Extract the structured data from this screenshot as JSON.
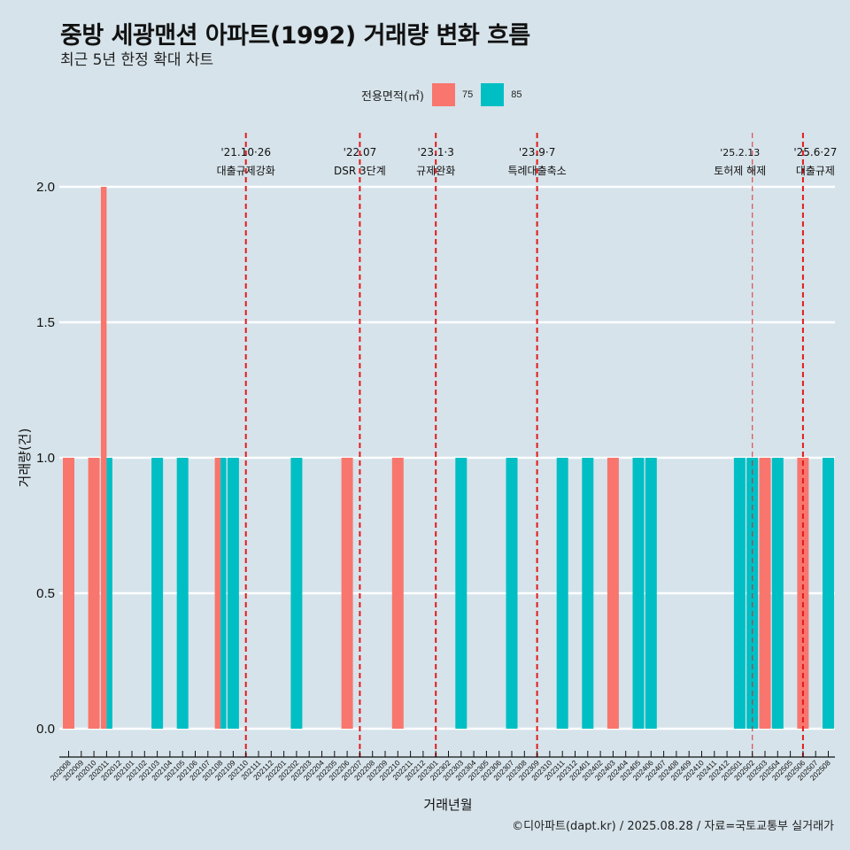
{
  "header": {
    "title": "중방 세광맨션 아파트(1992) 거래량 변화 흐름",
    "subtitle": "최근 5년 한정 확대 차트"
  },
  "legend": {
    "title": "전용면적(㎡)",
    "items": [
      {
        "label": "75",
        "color": "#f8766d"
      },
      {
        "label": "85",
        "color": "#00bfc4"
      }
    ]
  },
  "caption": "©디아파트(dapt.kr) / 2025.08.28 / 자료=국토교통부 실거래가",
  "chart_data": {
    "type": "bar",
    "title": "중방 세광맨션 아파트(1992) 거래량 변화 흐름",
    "subtitle": "최근 5년 한정 확대 차트",
    "xlabel": "거래년월",
    "ylabel": "거래량(건)",
    "ylim": [
      0,
      2
    ],
    "yticks": [
      "0.0",
      "0.5",
      "1.0",
      "1.5",
      "2.0"
    ],
    "ytick_values": [
      0,
      0.5,
      1.0,
      1.5,
      2.0
    ],
    "grid": true,
    "legend_position": "top",
    "categories": [
      "202008",
      "202009",
      "202010",
      "202011",
      "202012",
      "202101",
      "202102",
      "202103",
      "202104",
      "202105",
      "202106",
      "202107",
      "202108",
      "202109",
      "202110",
      "202111",
      "202112",
      "202201",
      "202202",
      "202203",
      "202204",
      "202205",
      "202206",
      "202207",
      "202208",
      "202209",
      "202210",
      "202211",
      "202212",
      "202301",
      "202302",
      "202303",
      "202304",
      "202305",
      "202306",
      "202307",
      "202308",
      "202309",
      "202310",
      "202311",
      "202312",
      "202401",
      "202402",
      "202403",
      "202404",
      "202405",
      "202406",
      "202407",
      "202408",
      "202409",
      "202410",
      "202411",
      "202412",
      "202501",
      "202502",
      "202503",
      "202504",
      "202505",
      "202506",
      "202507",
      "202508"
    ],
    "series": [
      {
        "name": "75",
        "color": "#f8766d",
        "values": [
          1,
          0,
          1,
          2,
          0,
          0,
          0,
          0,
          0,
          0,
          0,
          0,
          1,
          0,
          0,
          0,
          0,
          0,
          0,
          0,
          0,
          0,
          1,
          0,
          0,
          0,
          1,
          0,
          0,
          0,
          0,
          0,
          0,
          0,
          0,
          0,
          0,
          0,
          0,
          0,
          0,
          0,
          0,
          1,
          0,
          0,
          0,
          0,
          0,
          0,
          0,
          0,
          0,
          0,
          0,
          1,
          0,
          0,
          1,
          0,
          0
        ]
      },
      {
        "name": "85",
        "color": "#00bfc4",
        "values": [
          0,
          0,
          0,
          1,
          0,
          0,
          0,
          1,
          0,
          1,
          0,
          0,
          1,
          1,
          0,
          0,
          0,
          0,
          1,
          0,
          0,
          0,
          0,
          0,
          0,
          0,
          0,
          0,
          0,
          0,
          0,
          1,
          0,
          0,
          0,
          1,
          0,
          0,
          0,
          1,
          0,
          1,
          0,
          0,
          0,
          1,
          1,
          0,
          0,
          0,
          0,
          0,
          0,
          1,
          1,
          0,
          1,
          0,
          0,
          0,
          1
        ]
      }
    ],
    "events": [
      {
        "month": "202110",
        "date": "'21.10·26",
        "label": "대출규제강화"
      },
      {
        "month": "202207",
        "date": "'22.07",
        "label": "DSR 3단계"
      },
      {
        "month": "202301",
        "date": "'23.1·3",
        "label": "규제완화"
      },
      {
        "month": "202309",
        "date": "'23.9·7",
        "label": "특례대출축소"
      },
      {
        "month": "202502",
        "date": "'25.2.13",
        "label": "토허제 해제"
      },
      {
        "month": "202506",
        "date": "'25.6·27",
        "label": "대출규제"
      }
    ],
    "event_line_color": "#e31a1c"
  }
}
